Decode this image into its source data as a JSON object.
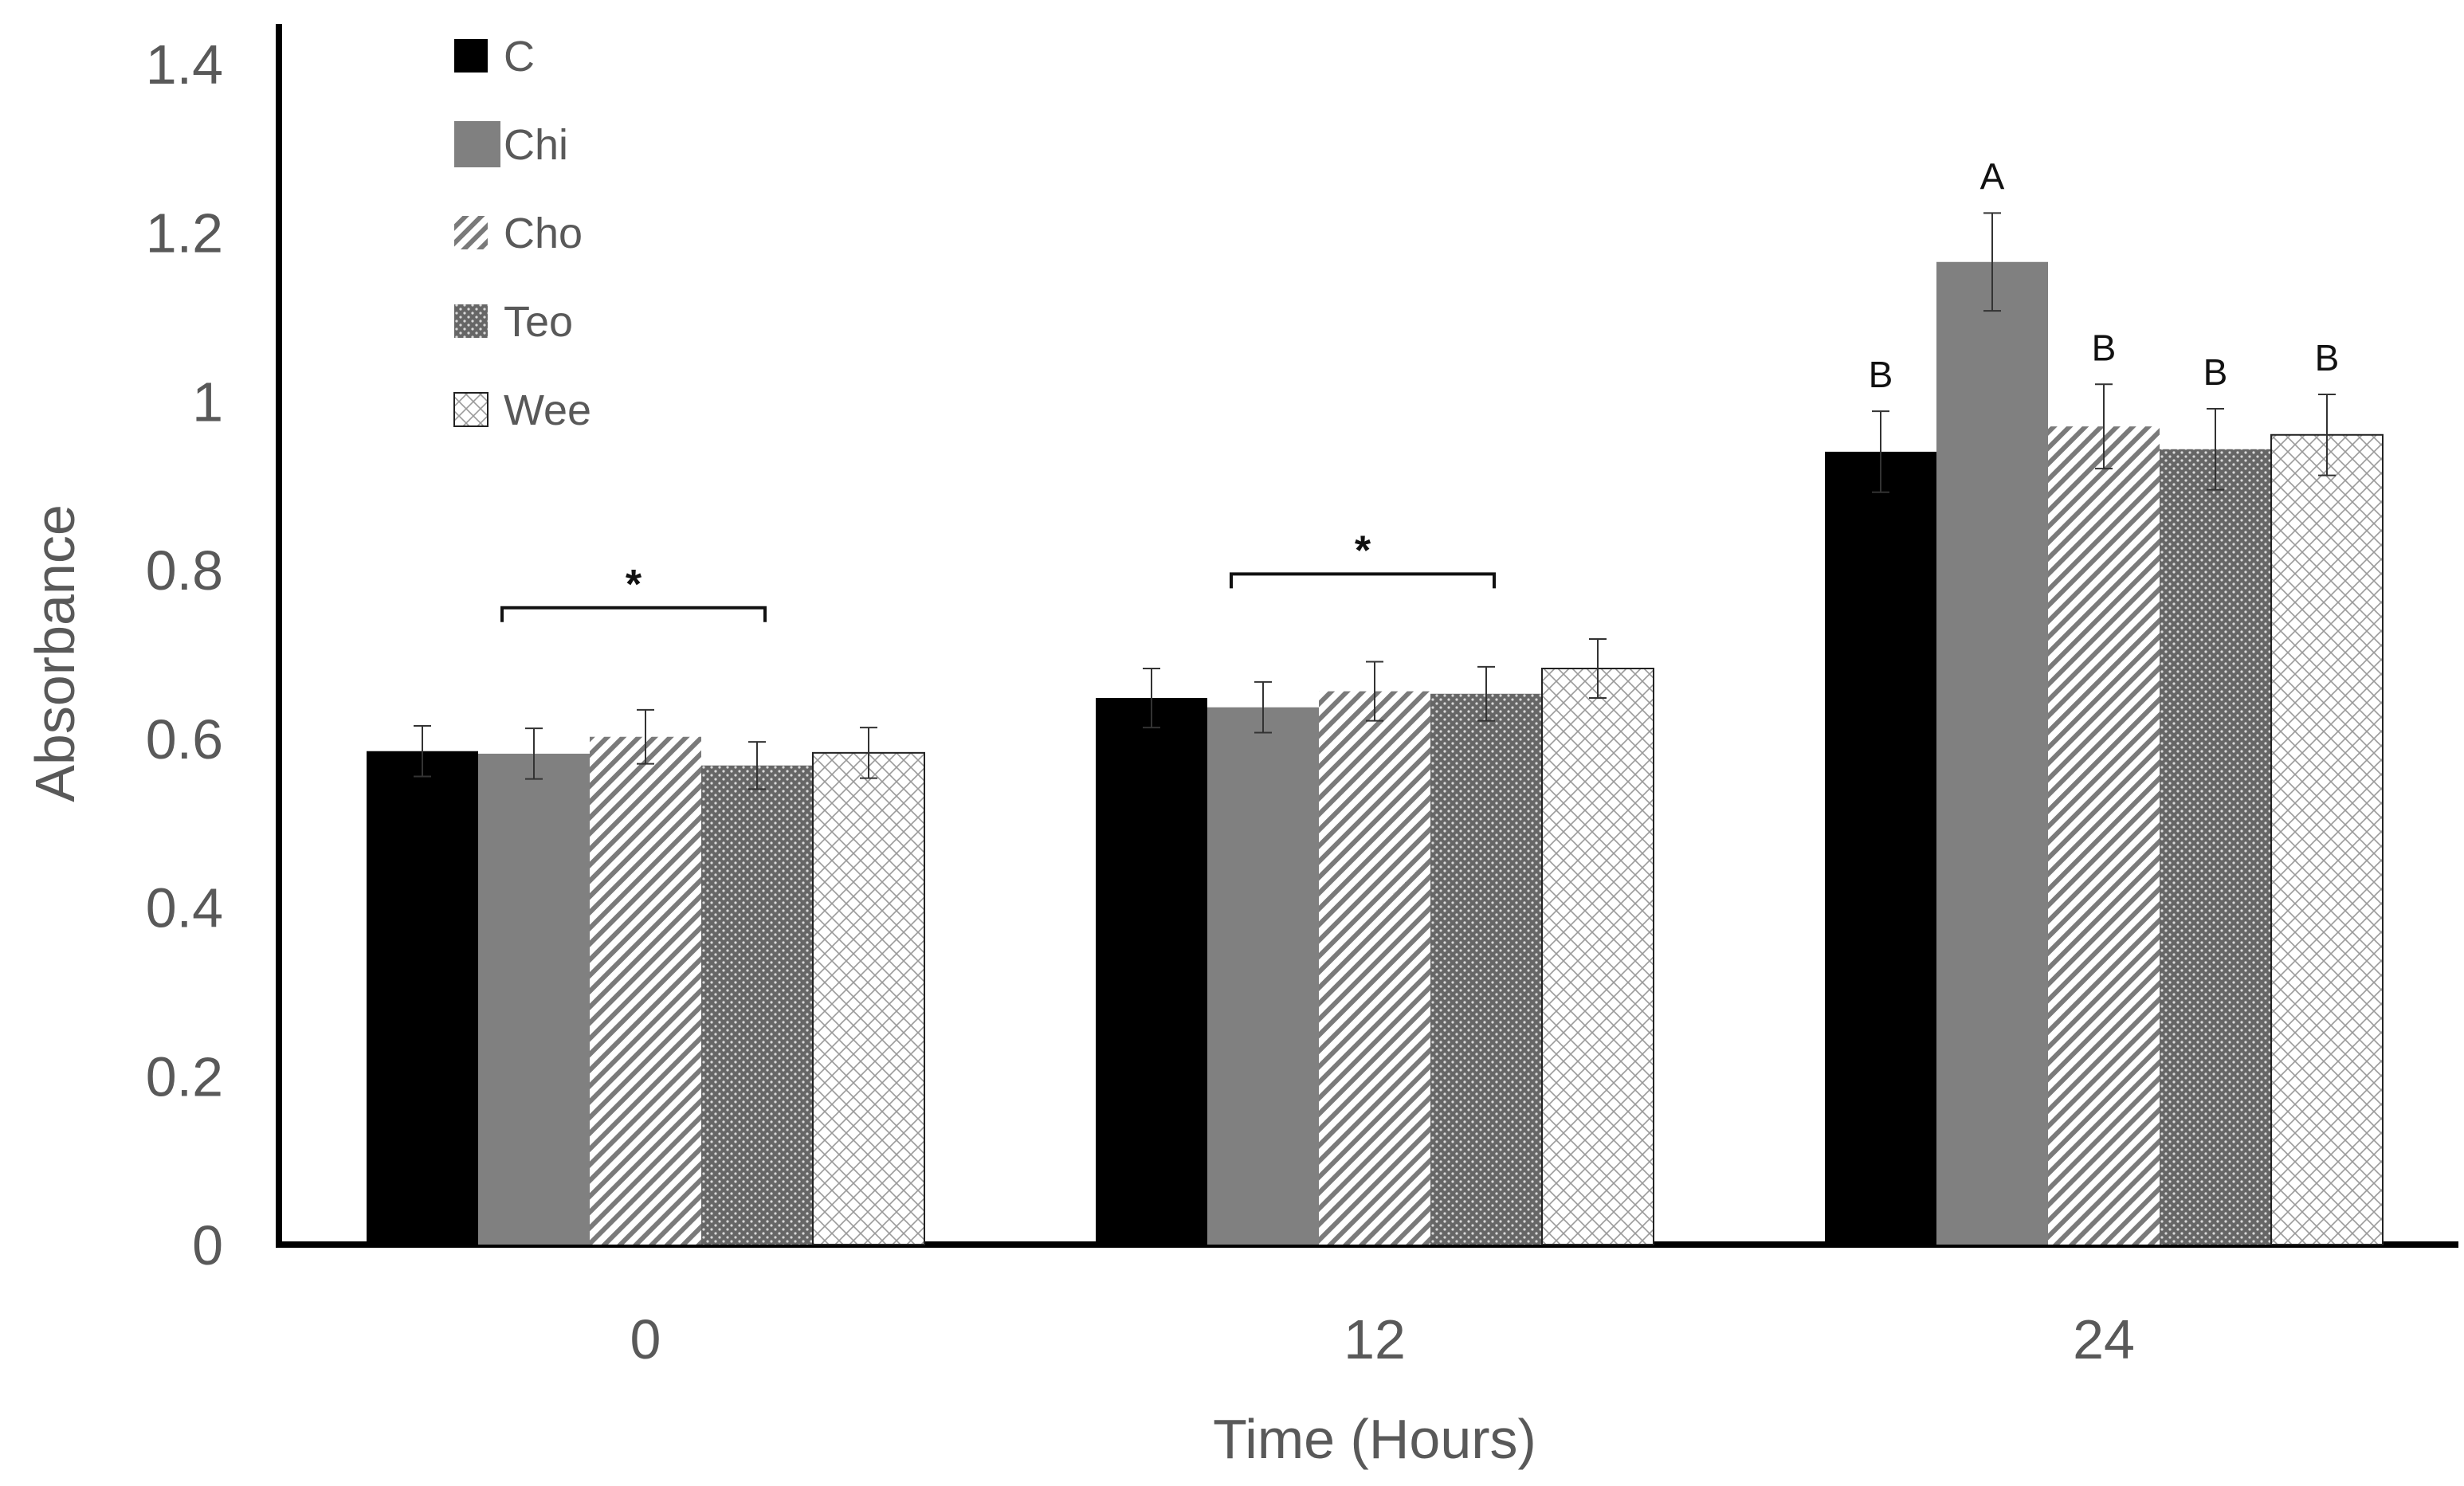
{
  "chart_data": {
    "type": "bar",
    "title": "",
    "xlabel": "Time (Hours)",
    "ylabel": "Absorbance",
    "ylim": [
      0,
      1.4
    ],
    "yticks": [
      "0",
      "0.2",
      "0.4",
      "0.6",
      "0.8",
      "1",
      "1.2",
      "1.4"
    ],
    "categories": [
      "0",
      "12",
      "24"
    ],
    "grid": false,
    "legend_position": "top-left",
    "series": [
      {
        "name": "C",
        "pattern": "solid-black",
        "values": [
          0.585,
          0.648,
          0.94
        ],
        "errors": [
          0.03,
          0.035,
          0.048
        ]
      },
      {
        "name": "Chi",
        "pattern": "solid-gray",
        "values": [
          0.582,
          0.637,
          1.165
        ],
        "errors": [
          0.03,
          0.03,
          0.058
        ]
      },
      {
        "name": "Cho",
        "pattern": "diagonal",
        "values": [
          0.602,
          0.656,
          0.97
        ],
        "errors": [
          0.032,
          0.035,
          0.05
        ]
      },
      {
        "name": "Teo",
        "pattern": "dots",
        "values": [
          0.568,
          0.653,
          0.943
        ],
        "errors": [
          0.028,
          0.032,
          0.048
        ]
      },
      {
        "name": "Wee",
        "pattern": "crosshatch",
        "values": [
          0.583,
          0.683,
          0.96
        ],
        "errors": [
          0.03,
          0.035,
          0.048
        ]
      }
    ],
    "letter_labels": [
      {
        "category": "24",
        "series": "C",
        "text": "B"
      },
      {
        "category": "24",
        "series": "Chi",
        "text": "A"
      },
      {
        "category": "24",
        "series": "Cho",
        "text": "B"
      },
      {
        "category": "24",
        "series": "Teo",
        "text": "B"
      },
      {
        "category": "24",
        "series": "Wee",
        "text": "B"
      }
    ],
    "significance_brackets": [
      {
        "category": "0",
        "from_series": "Chi",
        "to_series": "Teo",
        "y": 0.755,
        "text": "*"
      },
      {
        "category": "12",
        "from_series": "Chi",
        "to_series": "Teo",
        "y": 0.795,
        "text": "*"
      }
    ]
  }
}
